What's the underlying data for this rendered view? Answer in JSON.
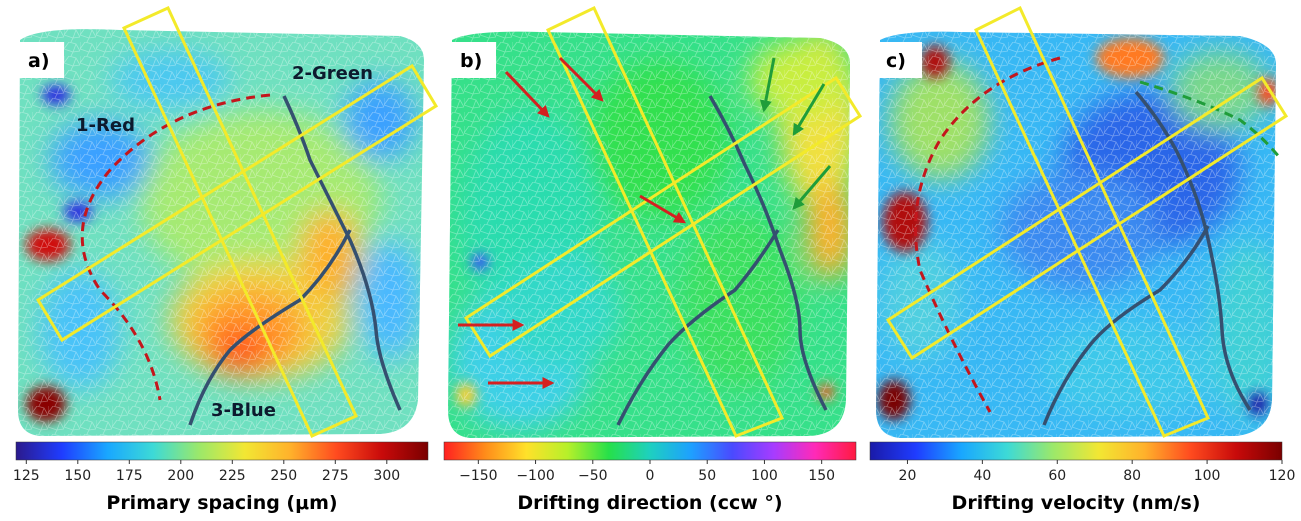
{
  "panels": [
    {
      "label": "a)",
      "colorbar": {
        "title": "Primary spacing (μm)",
        "ticks": [
          "125",
          "150",
          "175",
          "200",
          "225",
          "250",
          "275",
          "300"
        ],
        "range": [
          120,
          320
        ],
        "colors": [
          "#2b1a8c",
          "#1f3cff",
          "#19a7ff",
          "#3ddad6",
          "#9be86a",
          "#f2e733",
          "#ffb12b",
          "#ff4b1f",
          "#c80a0a",
          "#7a0000"
        ]
      },
      "region_labels": [
        "1-Red",
        "2-Green",
        "3-Blue"
      ]
    },
    {
      "label": "b)",
      "colorbar": {
        "title": "Drifting direction (ccw °)",
        "ticks": [
          "−150",
          "−100",
          "−50",
          "0",
          "50",
          "100",
          "150"
        ],
        "range": [
          -180,
          180
        ],
        "colors": [
          "#ff2020",
          "#ff8c1a",
          "#ffe12a",
          "#b6f02a",
          "#26e04a",
          "#1ed0c0",
          "#1ea0ff",
          "#4a4aff",
          "#a63cff",
          "#ff2ab8",
          "#ff1a40"
        ]
      }
    },
    {
      "label": "c)",
      "colorbar": {
        "title": "Drifting velocity (nm/s)",
        "ticks": [
          "20",
          "40",
          "60",
          "80",
          "100",
          "120"
        ],
        "range": [
          10,
          120
        ],
        "colors": [
          "#1a1aa8",
          "#1f3cff",
          "#19a7ff",
          "#3ddad6",
          "#9be86a",
          "#f2e733",
          "#ffb12b",
          "#ff4b1f",
          "#c80a0a",
          "#7a0000"
        ]
      }
    }
  ],
  "colors": {
    "box": "#f3ea2a",
    "boundary": "#355070",
    "red_dash": "#c4161c",
    "green_dash": "#1f9d3a",
    "red_arrow": "#d42020",
    "green_arrow": "#1f9d3a"
  }
}
